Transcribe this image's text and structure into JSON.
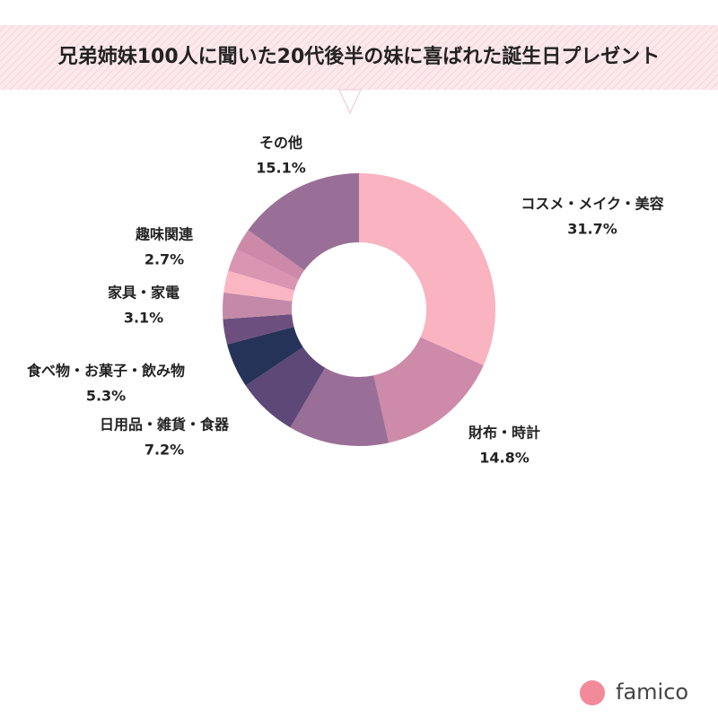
{
  "chart_data": {
    "type": "donut",
    "title": "兄弟姉妹100人に聞いた20代後半の妹に喜ばれた誕生日プレゼント",
    "categories": [
      "コスメ・メイク・美容",
      "財布・時計",
      null,
      "日用品・雑貨・食器",
      "食べ物・お菓子・飲み物",
      null,
      "家具・家電",
      null,
      "趣味関連",
      null,
      "その他"
    ],
    "values": [
      31.7,
      14.8,
      11.9,
      7.2,
      5.3,
      3.0,
      3.1,
      2.6,
      2.7,
      2.6,
      15.1
    ],
    "value_labels": [
      "31.7%",
      "14.8%",
      null,
      "7.2%",
      "5.3%",
      null,
      "3.1%",
      null,
      "2.7%",
      null,
      "15.1%"
    ],
    "colors": [
      "#fab3c0",
      "#cd8aa9",
      "#9a6f97",
      "#5e4878",
      "#263359",
      "#6c4f7f",
      "#c489a8",
      "#fbb6c3",
      "#d995b1",
      "#cc8aa8",
      "#9a6f97"
    ],
    "brand": "famico"
  }
}
